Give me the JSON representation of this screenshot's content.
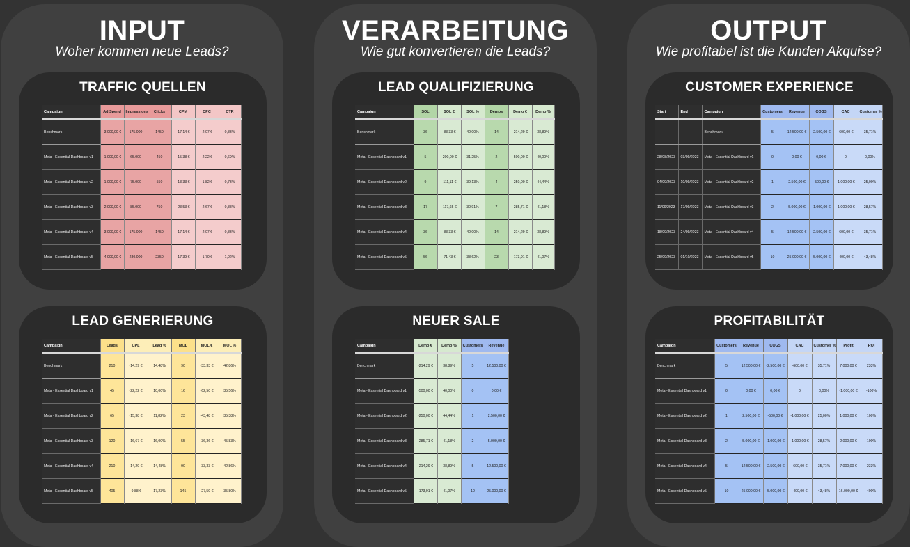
{
  "columns": {
    "input": {
      "title": "INPUT",
      "subtitle": "Woher kommen neue Leads?"
    },
    "verarbeitung": {
      "title": "VERARBEITUNG",
      "subtitle": "Wie gut konvertieren die Leads?"
    },
    "output": {
      "title": "OUTPUT",
      "subtitle": "Wie profitabel ist die Kunden Akquise?"
    }
  },
  "colors": {
    "background": "#333333",
    "column": "#404040",
    "panel": "#2b2b2b",
    "red": "#e8a4a4",
    "pink": "#f4cccc",
    "green": "#b8d9ad",
    "light_green": "#d9ead3",
    "blue": "#a4c2f4",
    "light_blue": "#c9daf8",
    "yellow": "#fee599",
    "light_yellow": "#fff2cc"
  },
  "panels": {
    "traffic": {
      "title": "TRAFFIC QUELLEN",
      "headers": [
        "Campaign",
        "Ad Spend",
        "Impressions",
        "Clicks",
        "CPM",
        "CPC",
        "CTR"
      ],
      "rows": [
        [
          "Benchmark",
          "-3.000,00 €",
          "175.000",
          "1450",
          "-17,14 €",
          "-2,07 €",
          "0,83%"
        ],
        [
          "Meta - Essential Dashboard v1",
          "-1.000,00 €",
          "65.000",
          "450",
          "-15,38 €",
          "-2,22 €",
          "0,69%"
        ],
        [
          "Meta - Essential Dashboard v2",
          "-1.000,00 €",
          "75.000",
          "550",
          "-13,33 €",
          "-1,82 €",
          "0,73%"
        ],
        [
          "Meta - Essential Dashboard v3",
          "-2.000,00 €",
          "85.000",
          "750",
          "-23,53 €",
          "-2,67 €",
          "0,88%"
        ],
        [
          "Meta - Essential Dashboard v4",
          "-3.000,00 €",
          "175.000",
          "1450",
          "-17,14 €",
          "-2,07 €",
          "0,83%"
        ],
        [
          "Meta - Essential Dashboard v5",
          "-4.000,00 €",
          "230.000",
          "2350",
          "-17,39 €",
          "-1,70 €",
          "1,02%"
        ]
      ]
    },
    "lead_qual": {
      "title": "LEAD QUALIFIZIERUNG",
      "headers": [
        "Campaign",
        "SQL",
        "SQL €",
        "SQL %",
        "Demos",
        "Demo €",
        "Demo %"
      ],
      "rows": [
        [
          "Benchmark",
          "36",
          "-83,33 €",
          "40,00%",
          "14",
          "-214,29 €",
          "38,89%"
        ],
        [
          "Meta - Essential Dashboard v1",
          "5",
          "-200,00 €",
          "31,25%",
          "2",
          "-500,00 €",
          "40,00%"
        ],
        [
          "Meta - Essential Dashboard v2",
          "9",
          "-111,11 €",
          "39,13%",
          "4",
          "-250,00 €",
          "44,44%"
        ],
        [
          "Meta - Essential Dashboard v3",
          "17",
          "-117,65 €",
          "30,91%",
          "7",
          "-285,71 €",
          "41,18%"
        ],
        [
          "Meta - Essential Dashboard v4",
          "36",
          "-83,33 €",
          "40,00%",
          "14",
          "-214,29 €",
          "38,89%"
        ],
        [
          "Meta - Essential Dashboard v5",
          "56",
          "-71,43 €",
          "38,62%",
          "23",
          "-173,91 €",
          "41,07%"
        ]
      ]
    },
    "customer_exp": {
      "title": "CUSTOMER EXPERIENCE",
      "headers": [
        "Start",
        "End",
        "Campaign",
        "Customers",
        "Revenue",
        "COGS",
        "CAC",
        "Customer %"
      ],
      "rows": [
        [
          "-",
          "-",
          "Benchmark",
          "5",
          "12.500,00 €",
          "-2.500,00 €",
          "-600,00 €",
          "35,71%"
        ],
        [
          "28/08/2023",
          "03/09/2023",
          "Meta - Essential Dashboard v1",
          "0",
          "0,00 €",
          "0,00 €",
          "0",
          "0,00%"
        ],
        [
          "04/09/2023",
          "10/09/2023",
          "Meta - Essential Dashboard v2",
          "1",
          "2.500,00 €",
          "-500,00 €",
          "-1.000,00 €",
          "25,00%"
        ],
        [
          "11/09/2023",
          "17/09/2023",
          "Meta - Essential Dashboard v3",
          "2",
          "5.000,00 €",
          "-1.000,00 €",
          "-1.000,00 €",
          "28,57%"
        ],
        [
          "18/09/2023",
          "24/09/2023",
          "Meta - Essential Dashboard v4",
          "5",
          "12.500,00 €",
          "-2.500,00 €",
          "-600,00 €",
          "35,71%"
        ],
        [
          "25/09/2023",
          "01/10/2023",
          "Meta - Essential Dashboard v5",
          "10",
          "25.000,00 €",
          "-5.000,00 €",
          "-400,00 €",
          "43,48%"
        ]
      ]
    },
    "lead_gen": {
      "title": "LEAD GENERIERUNG",
      "headers": [
        "Campaign",
        "Leads",
        "CPL",
        "Lead %",
        "MQL",
        "MQL €",
        "MQL %"
      ],
      "rows": [
        [
          "Benchmark",
          "210",
          "-14,29 €",
          "14,48%",
          "90",
          "-33,33 €",
          "42,86%"
        ],
        [
          "Meta - Essential Dashboard v1",
          "45",
          "-22,22 €",
          "10,00%",
          "16",
          "-62,50 €",
          "35,56%"
        ],
        [
          "Meta - Essential Dashboard v2",
          "65",
          "-15,38 €",
          "11,82%",
          "23",
          "-43,48 €",
          "35,38%"
        ],
        [
          "Meta - Essential Dashboard v3",
          "120",
          "-16,67 €",
          "16,00%",
          "55",
          "-36,36 €",
          "45,83%"
        ],
        [
          "Meta - Essential Dashboard v4",
          "210",
          "-14,29 €",
          "14,48%",
          "90",
          "-33,33 €",
          "42,86%"
        ],
        [
          "Meta - Essential Dashboard v5",
          "405",
          "-9,88 €",
          "17,23%",
          "145",
          "-27,59 €",
          "35,80%"
        ]
      ]
    },
    "neuer_sale": {
      "title": "NEUER SALE",
      "headers": [
        "Campaign",
        "Demo €",
        "Demo %",
        "Customers",
        "Revenue"
      ],
      "rows": [
        [
          "Benchmark",
          "-214,29 €",
          "38,89%",
          "5",
          "12.500,00 €"
        ],
        [
          "Meta - Essential Dashboard v1",
          "-500,00 €",
          "40,00%",
          "0",
          "0,00 €"
        ],
        [
          "Meta - Essential Dashboard v2",
          "-250,00 €",
          "44,44%",
          "1",
          "2.500,00 €"
        ],
        [
          "Meta - Essential Dashboard v3",
          "-285,71 €",
          "41,18%",
          "2",
          "5.000,00 €"
        ],
        [
          "Meta - Essential Dashboard v4",
          "-214,29 €",
          "38,89%",
          "5",
          "12.500,00 €"
        ],
        [
          "Meta - Essential Dashboard v5",
          "-173,91 €",
          "41,07%",
          "10",
          "25.000,00 €"
        ]
      ]
    },
    "profit": {
      "title": "PROFITABILITÄT",
      "headers": [
        "Campaign",
        "Customers",
        "Revenue",
        "COGS",
        "CAC",
        "Customer %",
        "Profit",
        "ROI"
      ],
      "rows": [
        [
          "Benchmark",
          "5",
          "12.500,00 €",
          "-2.500,00 €",
          "-600,00 €",
          "35,71%",
          "7.000,00 €",
          "233%"
        ],
        [
          "Meta - Essential Dashboard v1",
          "0",
          "0,00 €",
          "0,00 €",
          "0",
          "0,00%",
          "-1.000,00 €",
          "-100%"
        ],
        [
          "Meta - Essential Dashboard v2",
          "1",
          "2.500,00 €",
          "-500,00 €",
          "-1.000,00 €",
          "25,00%",
          "1.000,00 €",
          "100%"
        ],
        [
          "Meta - Essential Dashboard v3",
          "2",
          "5.000,00 €",
          "-1.000,00 €",
          "-1.000,00 €",
          "28,57%",
          "2.000,00 €",
          "100%"
        ],
        [
          "Meta - Essential Dashboard v4",
          "5",
          "12.500,00 €",
          "-2.500,00 €",
          "-600,00 €",
          "35,71%",
          "7.000,00 €",
          "233%"
        ],
        [
          "Meta - Essential Dashboard v5",
          "10",
          "25.000,00 €",
          "-5.000,00 €",
          "-400,00 €",
          "43,48%",
          "16.000,00 €",
          "400%"
        ]
      ]
    }
  }
}
